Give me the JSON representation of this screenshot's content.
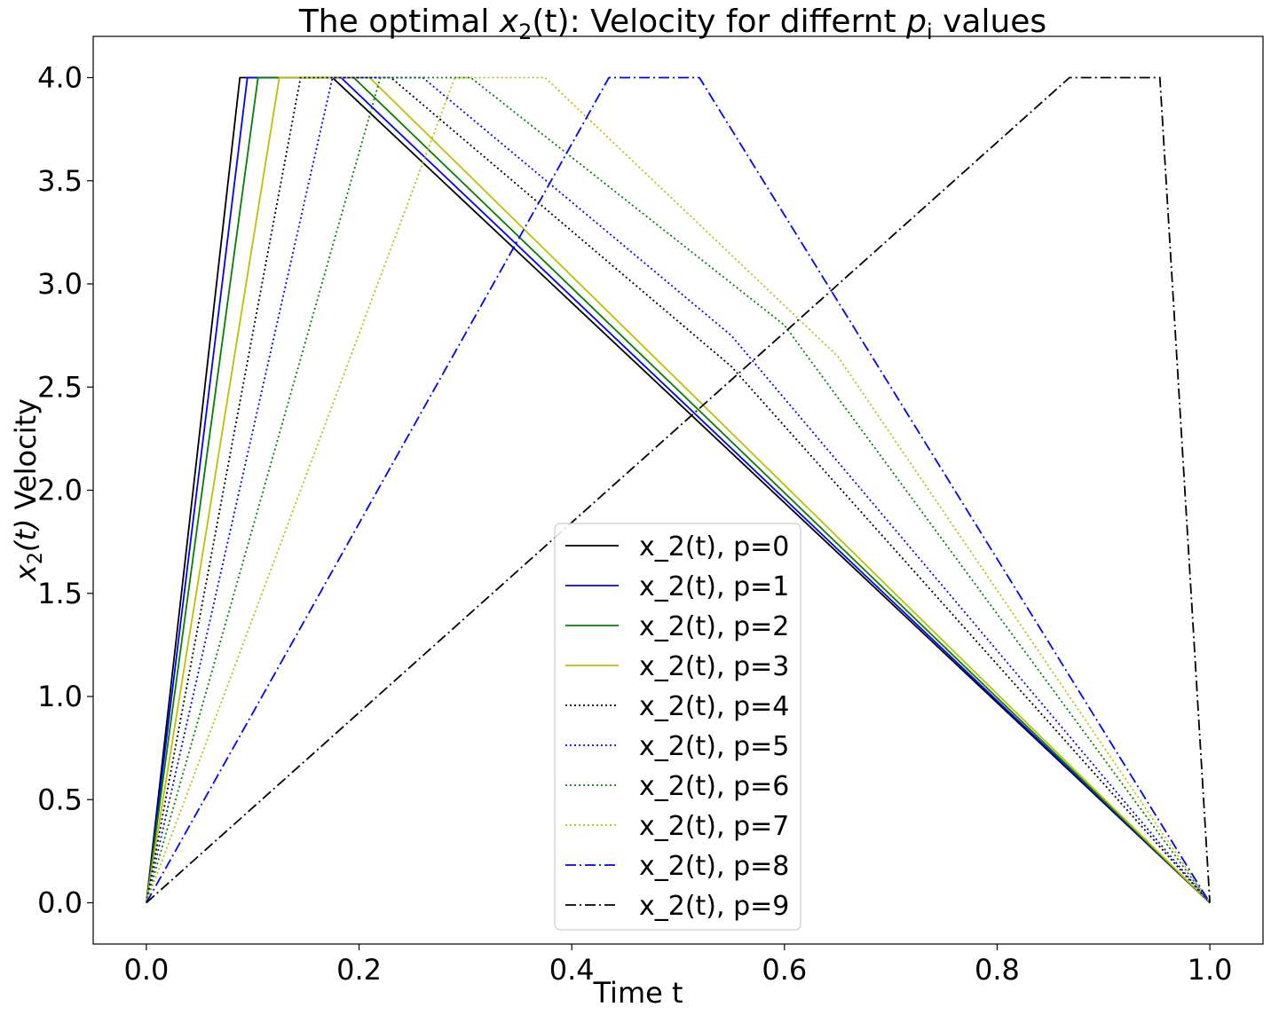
{
  "chart_data": {
    "type": "line",
    "title_pre": "The optimal ",
    "title_var": "x",
    "title_sub": "2",
    "title_mid": "(t): Velocity for differnt ",
    "title_var2": "p",
    "title_sub2": "i",
    "title_post": " values",
    "xlabel": "Time t",
    "ylabel_var": "x",
    "ylabel_sub": "2",
    "ylabel_paren": "(t)",
    "ylabel_post": " Velocity",
    "xlim": [
      -0.05,
      1.05
    ],
    "ylim": [
      -0.2,
      4.2
    ],
    "xticks": [
      "0.0",
      "0.2",
      "0.4",
      "0.6",
      "0.8",
      "1.0"
    ],
    "xtick_values": [
      0.0,
      0.2,
      0.4,
      0.6,
      0.8,
      1.0
    ],
    "yticks": [
      "0.0",
      "0.5",
      "1.0",
      "1.5",
      "2.0",
      "2.5",
      "3.0",
      "3.5",
      "4.0"
    ],
    "ytick_values": [
      0.0,
      0.5,
      1.0,
      1.5,
      2.0,
      2.5,
      3.0,
      3.5,
      4.0
    ],
    "legend_position": "lower-center",
    "series": [
      {
        "name": "x_2(t), p=0",
        "color": "#000000",
        "style": "solid",
        "points": [
          [
            0,
            0
          ],
          [
            0.088,
            4.0
          ],
          [
            0.175,
            4.0
          ],
          [
            1.0,
            0
          ]
        ]
      },
      {
        "name": "x_2(t), p=1",
        "color": "#0000ff",
        "style": "solid",
        "points": [
          [
            0,
            0
          ],
          [
            0.095,
            4.0
          ],
          [
            0.183,
            4.0
          ],
          [
            1.0,
            0
          ]
        ]
      },
      {
        "name": "x_2(t), p=2",
        "color": "#008000",
        "style": "solid",
        "points": [
          [
            0,
            0
          ],
          [
            0.105,
            4.0
          ],
          [
            0.195,
            4.0
          ],
          [
            1.0,
            0
          ]
        ]
      },
      {
        "name": "x_2(t), p=3",
        "color": "#bfbf00",
        "style": "solid",
        "points": [
          [
            0,
            0
          ],
          [
            0.125,
            4.0
          ],
          [
            0.21,
            4.0
          ],
          [
            1.0,
            0
          ]
        ]
      },
      {
        "name": "x_2(t), p=4",
        "color": "#000000",
        "style": "dotted",
        "points": [
          [
            0,
            0
          ],
          [
            0.145,
            4.0
          ],
          [
            0.23,
            4.0
          ],
          [
            0.55,
            2.6
          ],
          [
            1.0,
            0
          ]
        ]
      },
      {
        "name": "x_2(t), p=5",
        "color": "#0000ff",
        "style": "dotted",
        "points": [
          [
            0,
            0
          ],
          [
            0.175,
            4.0
          ],
          [
            0.26,
            4.0
          ],
          [
            0.55,
            2.75
          ],
          [
            1.0,
            0
          ]
        ]
      },
      {
        "name": "x_2(t), p=6",
        "color": "#008000",
        "style": "dotted",
        "points": [
          [
            0,
            0
          ],
          [
            0.22,
            4.0
          ],
          [
            0.305,
            4.0
          ],
          [
            0.6,
            2.8
          ],
          [
            1.0,
            0
          ]
        ]
      },
      {
        "name": "x_2(t), p=7",
        "color": "#bfbf00",
        "style": "dotted",
        "points": [
          [
            0,
            0
          ],
          [
            0.29,
            4.0
          ],
          [
            0.375,
            4.0
          ],
          [
            0.65,
            2.65
          ],
          [
            1.0,
            0
          ]
        ]
      },
      {
        "name": "x_2(t), p=8",
        "color": "#0000ff",
        "style": "dashdot",
        "points": [
          [
            0,
            0
          ],
          [
            0.435,
            4.0
          ],
          [
            0.52,
            4.0
          ],
          [
            1.0,
            0
          ]
        ]
      },
      {
        "name": "x_2(t), p=9",
        "color": "#000000",
        "style": "dashdot",
        "points": [
          [
            0,
            0
          ],
          [
            0.868,
            4.0
          ],
          [
            0.953,
            4.0
          ],
          [
            1.0,
            0
          ]
        ]
      }
    ]
  }
}
